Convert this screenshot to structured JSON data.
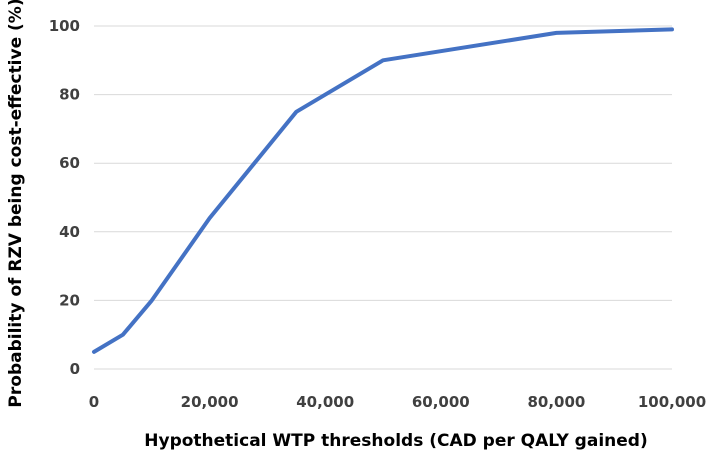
{
  "chart_data": {
    "type": "line",
    "title": "",
    "xlabel": "Hypothetical WTP thresholds (CAD per QALY gained)",
    "ylabel": "Probability of RZV being cost-effective (%)",
    "xlim": [
      0,
      100000
    ],
    "ylim": [
      0,
      100
    ],
    "x_ticks": [
      0,
      20000,
      40000,
      60000,
      80000,
      100000
    ],
    "x_tick_labels": [
      "0",
      "20,000",
      "40,000",
      "60,000",
      "80,000",
      "100,000"
    ],
    "y_ticks": [
      0,
      20,
      40,
      60,
      80,
      100
    ],
    "y_tick_labels": [
      "0",
      "20",
      "40",
      "60",
      "80",
      "100"
    ],
    "grid": "horizontal",
    "legend": "none",
    "series": [
      {
        "color": "#4472C4",
        "x": [
          0,
          5000,
          10000,
          20000,
          35000,
          50000,
          80000,
          100000
        ],
        "y": [
          5,
          10,
          20,
          44,
          75,
          90,
          98,
          99
        ]
      }
    ]
  }
}
